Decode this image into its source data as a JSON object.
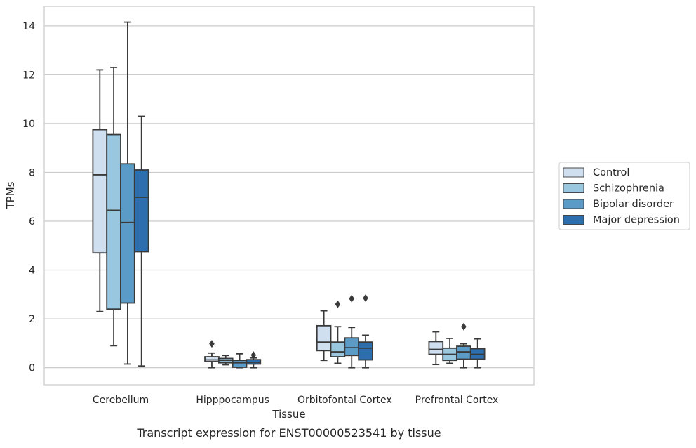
{
  "chart_data": {
    "type": "box",
    "title": "",
    "caption": "Transcript expression for ENST00000523541 by tissue",
    "xlabel": "Tissue",
    "ylabel": "TPMs",
    "ylim": [
      -0.7,
      14.8
    ],
    "yticks": [
      0,
      2,
      4,
      6,
      8,
      10,
      12,
      14
    ],
    "grid": "horizontal",
    "legend_position": "right",
    "categories": [
      "Cerebellum",
      "Hipppocampus",
      "Orbitofontal Cortex",
      "Prefrontal Cortex"
    ],
    "series": [
      {
        "name": "Control",
        "color": "#cfdff0",
        "boxes": [
          {
            "whislo": 2.3,
            "q1": 4.7,
            "med": 7.9,
            "q3": 9.75,
            "whishi": 12.2,
            "fliers": []
          },
          {
            "whislo": 0.0,
            "q1": 0.25,
            "med": 0.32,
            "q3": 0.45,
            "whishi": 0.6,
            "fliers": [
              0.98
            ]
          },
          {
            "whislo": 0.3,
            "q1": 0.7,
            "med": 1.05,
            "q3": 1.72,
            "whishi": 2.33,
            "fliers": []
          },
          {
            "whislo": 0.13,
            "q1": 0.55,
            "med": 0.75,
            "q3": 1.07,
            "whishi": 1.47,
            "fliers": []
          }
        ]
      },
      {
        "name": "Schizophrenia",
        "color": "#9ac7e0",
        "boxes": [
          {
            "whislo": 0.9,
            "q1": 2.4,
            "med": 6.45,
            "q3": 9.55,
            "whishi": 12.3,
            "fliers": []
          },
          {
            "whislo": 0.12,
            "q1": 0.2,
            "med": 0.3,
            "q3": 0.38,
            "whishi": 0.5,
            "fliers": []
          },
          {
            "whislo": 0.18,
            "q1": 0.45,
            "med": 0.65,
            "q3": 1.05,
            "whishi": 1.68,
            "fliers": [
              2.6
            ]
          },
          {
            "whislo": 0.18,
            "q1": 0.3,
            "med": 0.55,
            "q3": 0.8,
            "whishi": 1.2,
            "fliers": []
          }
        ]
      },
      {
        "name": "Bipolar disorder",
        "color": "#5b9bc8",
        "boxes": [
          {
            "whislo": 0.15,
            "q1": 2.65,
            "med": 5.95,
            "q3": 8.35,
            "whishi": 14.15,
            "fliers": []
          },
          {
            "whislo": 0.0,
            "q1": 0.02,
            "med": 0.2,
            "q3": 0.3,
            "whishi": 0.57,
            "fliers": []
          },
          {
            "whislo": 0.0,
            "q1": 0.5,
            "med": 0.82,
            "q3": 1.22,
            "whishi": 1.65,
            "fliers": [
              2.83
            ]
          },
          {
            "whislo": 0.0,
            "q1": 0.35,
            "med": 0.65,
            "q3": 0.88,
            "whishi": 0.98,
            "fliers": [
              1.68
            ]
          }
        ]
      },
      {
        "name": "Major depression",
        "color": "#2c6eae",
        "boxes": [
          {
            "whislo": 0.07,
            "q1": 4.75,
            "med": 6.98,
            "q3": 8.1,
            "whishi": 10.3,
            "fliers": []
          },
          {
            "whislo": 0.0,
            "q1": 0.15,
            "med": 0.22,
            "q3": 0.33,
            "whishi": 0.4,
            "fliers": [
              0.52
            ]
          },
          {
            "whislo": 0.0,
            "q1": 0.32,
            "med": 0.8,
            "q3": 1.05,
            "whishi": 1.33,
            "fliers": [
              2.85
            ]
          },
          {
            "whislo": 0.0,
            "q1": 0.35,
            "med": 0.55,
            "q3": 0.78,
            "whishi": 1.18,
            "fliers": []
          }
        ]
      }
    ]
  }
}
